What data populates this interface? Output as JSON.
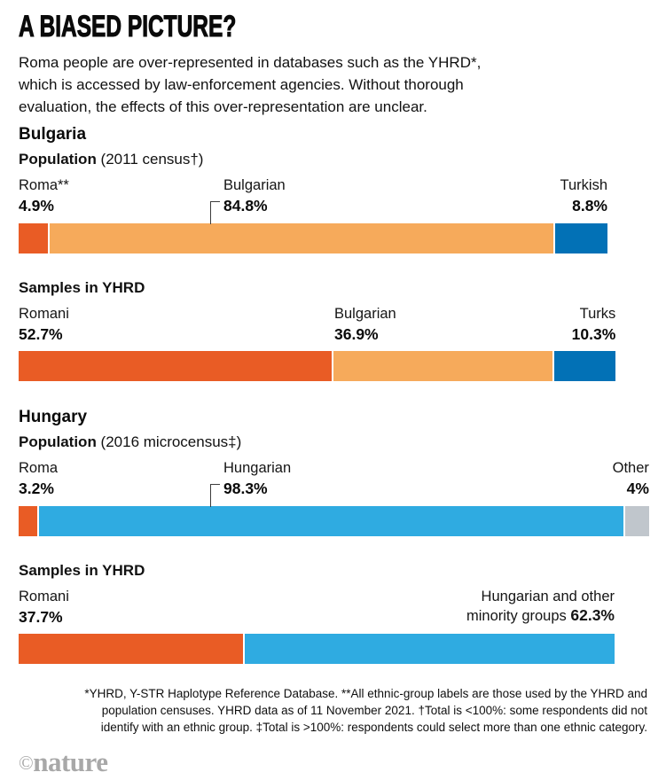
{
  "header": {
    "title": "A BIASED PICTURE?",
    "subtitle_lines": [
      "Roma people are over-represented in databases such as the YHRD*,",
      "which is accessed by law-enforcement agencies. Without thorough",
      "evaluation, the effects of this over-representation are unclear."
    ]
  },
  "chart_data": {
    "type": "bar",
    "variant": "horizontal-stacked",
    "unit": "%",
    "scale_note": "segment lengths proportional to percentage; totals may be under or over 100%",
    "sections": [
      {
        "country": "Bulgaria",
        "charts": [
          {
            "label_bold": "Population",
            "label_note": " (2011 census†)",
            "total": 98.5,
            "segments": [
              {
                "label": "Roma**",
                "value": 4.9,
                "display": "4.9%",
                "color": "#E95C25"
              },
              {
                "label": "Bulgarian",
                "value": 84.8,
                "display": "84.8%",
                "color": "#F6AA5B"
              },
              {
                "label": "Turkish",
                "value": 8.8,
                "display": "8.8%",
                "color": "#0271B6"
              }
            ]
          },
          {
            "label_bold": "Samples in YHRD",
            "label_note": "",
            "total": 99.9,
            "segments": [
              {
                "label": "Romani",
                "value": 52.7,
                "display": "52.7%",
                "color": "#E95C25"
              },
              {
                "label": "Bulgarian",
                "value": 36.9,
                "display": "36.9%",
                "color": "#F6AA5B"
              },
              {
                "label": "Turks",
                "value": 10.3,
                "display": "10.3%",
                "color": "#0271B6"
              }
            ]
          }
        ]
      },
      {
        "country": "Hungary",
        "charts": [
          {
            "label_bold": "Population",
            "label_note": " (2016 microcensus‡)",
            "total": 105.5,
            "segments": [
              {
                "label": "Roma",
                "value": 3.2,
                "display": "3.2%",
                "color": "#E95C25"
              },
              {
                "label": "Hungarian",
                "value": 98.3,
                "display": "98.3%",
                "color": "#2FABE1"
              },
              {
                "label": "Other",
                "value": 4.0,
                "display": "4%",
                "color": "#C0C6CC"
              }
            ]
          },
          {
            "label_bold": "Samples in YHRD",
            "label_note": "",
            "total": 100.0,
            "segments": [
              {
                "label": "Romani",
                "value": 37.7,
                "display": "37.7%",
                "color": "#E95C25"
              },
              {
                "label": "Hungarian and other",
                "label2": "minority groups",
                "value": 62.3,
                "display": "62.3%",
                "color": "#2FABE1"
              }
            ]
          }
        ]
      }
    ]
  },
  "footnote_lines": [
    "*YHRD, Y-STR Haplotype Reference Database. **All ethnic-group labels are those used by the YHRD and",
    "population censuses. YHRD data as of 11 November 2021. †Total is <100%: some respondents did not",
    "identify with an ethnic group. ‡Total is >100%: respondents could select more than one ethnic category."
  ],
  "logo": {
    "copyright": "©",
    "name": "nature"
  }
}
